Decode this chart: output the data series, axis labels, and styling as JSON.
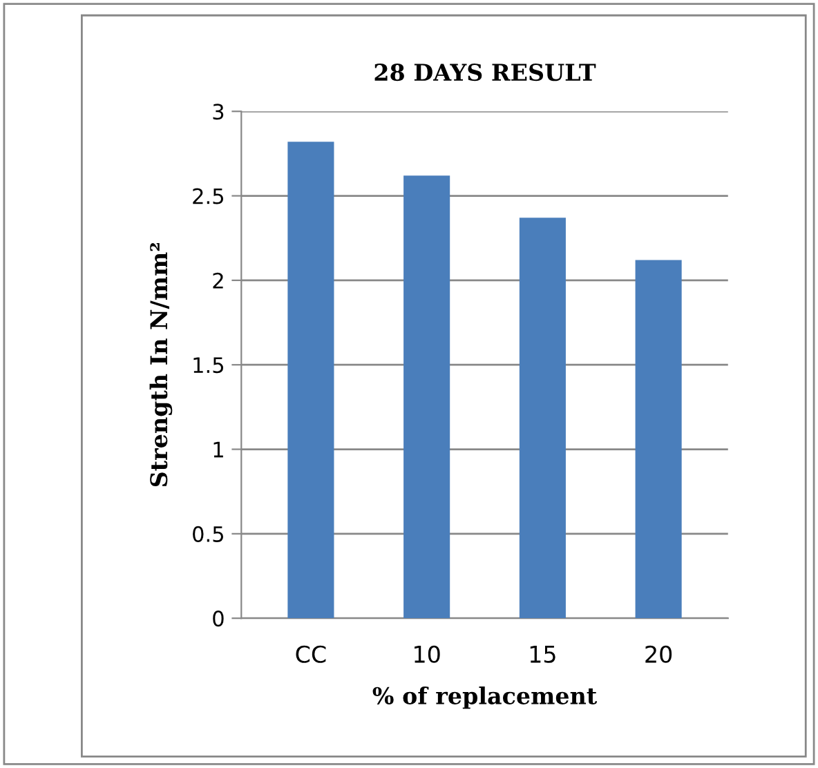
{
  "chart_data": {
    "type": "bar",
    "title": "28 DAYS RESULT",
    "xlabel": "% of replacement",
    "ylabel": "Strength In N/mm²",
    "categories": [
      "CC",
      "10",
      "15",
      "20"
    ],
    "values": [
      2.82,
      2.62,
      2.37,
      2.12
    ],
    "color": "#4a7ebb",
    "ylim": [
      0,
      3
    ],
    "yticks": [
      0,
      0.5,
      1,
      1.5,
      2,
      2.5,
      3
    ],
    "grid": "y",
    "legend": false
  }
}
